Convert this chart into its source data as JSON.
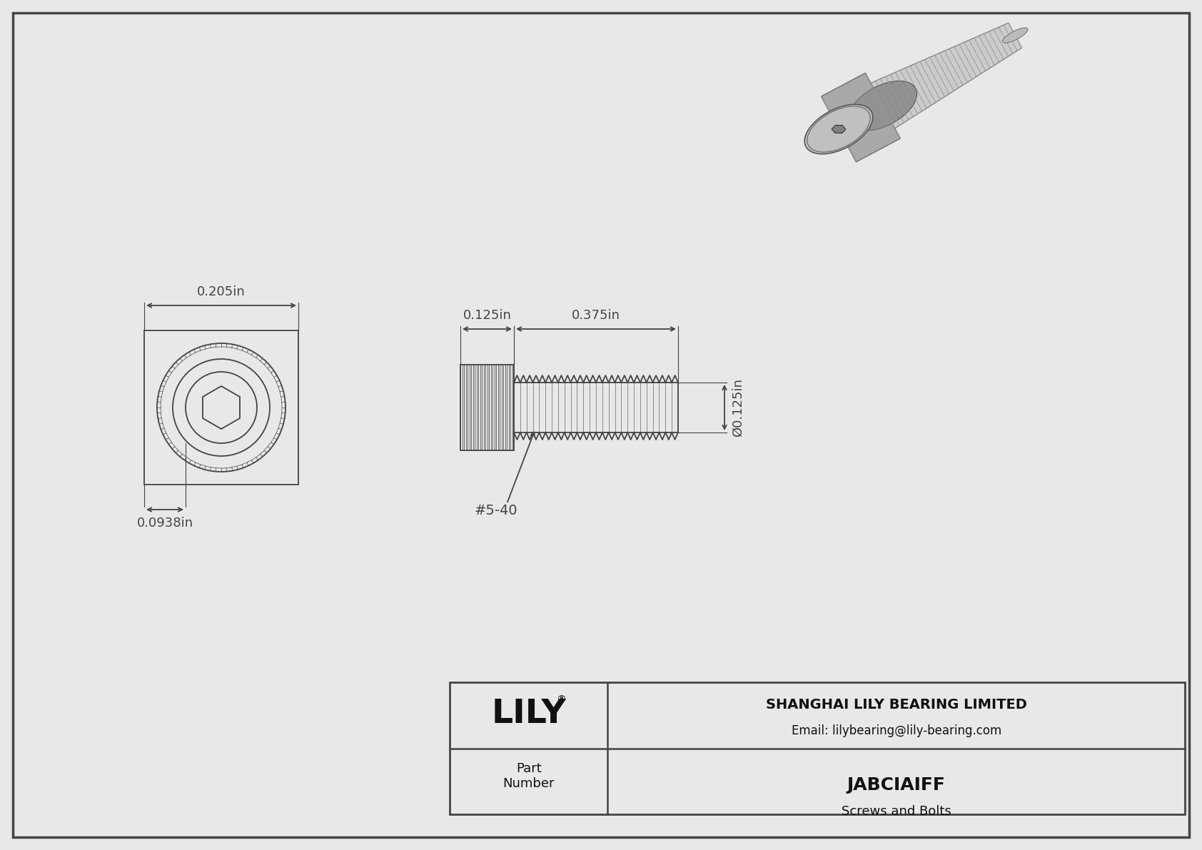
{
  "bg_color": "#e8e8e8",
  "border_color": "#444444",
  "line_color": "#444444",
  "company": "SHANGHAI LILY BEARING LIMITED",
  "email": "Email: lilybearing@lily-bearing.com",
  "part_number": "JABCIAIFF",
  "part_category": "Screws and Bolts",
  "dim_head_length": "0.125in",
  "dim_thread_length": "0.375in",
  "dim_diameter": "0.125in",
  "dim_front_diameter": "0.205in",
  "dim_inner_diameter": "0.0938in",
  "thread_spec": "#5-40"
}
